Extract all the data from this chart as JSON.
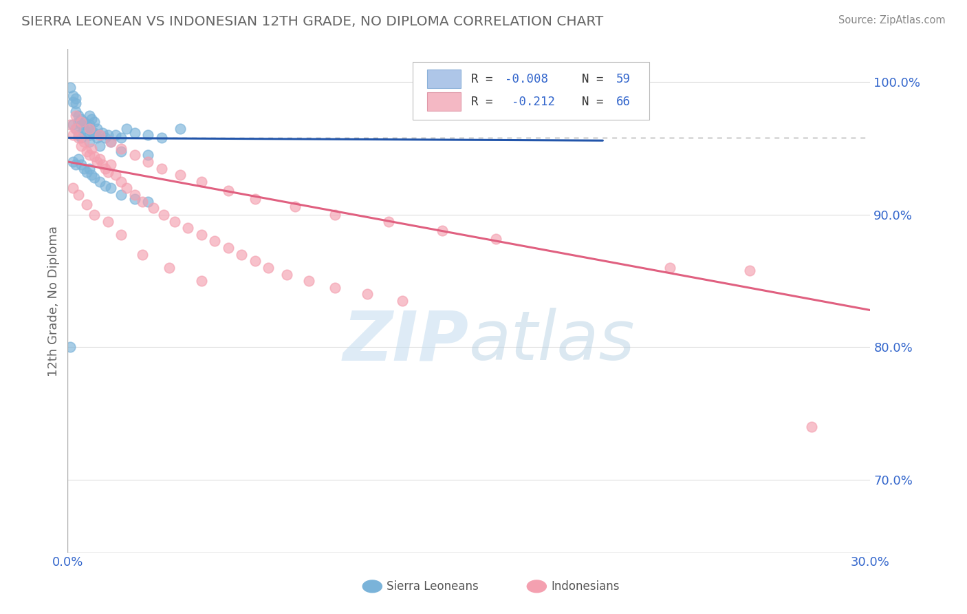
{
  "title": "SIERRA LEONEAN VS INDONESIAN 12TH GRADE, NO DIPLOMA CORRELATION CHART",
  "source": "Source: ZipAtlas.com",
  "ylabel": "12th Grade, No Diploma",
  "legend_text_color": "#3366cc",
  "blue_color": "#7ab3d9",
  "pink_color": "#f4a0b0",
  "blue_line_color": "#2255aa",
  "pink_line_color": "#e06080",
  "title_color": "#666666",
  "source_color": "#888888",
  "watermark_color": "#d0e4f0",
  "background_color": "#ffffff",
  "grid_color": "#dddddd",
  "axis_color": "#aaaaaa",
  "xlim": [
    0.0,
    0.3
  ],
  "ylim": [
    0.645,
    1.025
  ],
  "ytick_vals": [
    0.7,
    0.8,
    0.9,
    1.0
  ],
  "ytick_labels": [
    "70.0%",
    "80.0%",
    "90.0%",
    "100.0%"
  ],
  "dashed_line_y": 0.958,
  "blue_trend_x": [
    0.0,
    0.2
  ],
  "blue_trend_y": [
    0.958,
    0.956
  ],
  "pink_trend_x": [
    0.0,
    0.3
  ],
  "pink_trend_y": [
    0.94,
    0.828
  ],
  "blue_scatter_x": [
    0.001,
    0.002,
    0.002,
    0.003,
    0.003,
    0.003,
    0.004,
    0.004,
    0.005,
    0.005,
    0.006,
    0.006,
    0.007,
    0.007,
    0.008,
    0.008,
    0.008,
    0.009,
    0.009,
    0.01,
    0.01,
    0.011,
    0.011,
    0.012,
    0.013,
    0.014,
    0.015,
    0.016,
    0.018,
    0.02,
    0.022,
    0.025,
    0.03,
    0.035,
    0.042,
    0.002,
    0.003,
    0.004,
    0.005,
    0.006,
    0.007,
    0.008,
    0.009,
    0.01,
    0.012,
    0.014,
    0.016,
    0.02,
    0.025,
    0.03,
    0.001,
    0.002,
    0.003,
    0.004,
    0.005,
    0.008,
    0.012,
    0.02,
    0.03
  ],
  "blue_scatter_y": [
    0.996,
    0.99,
    0.985,
    0.988,
    0.984,
    0.978,
    0.975,
    0.97,
    0.972,
    0.968,
    0.97,
    0.965,
    0.968,
    0.962,
    0.975,
    0.968,
    0.96,
    0.972,
    0.963,
    0.97,
    0.962,
    0.965,
    0.958,
    0.96,
    0.962,
    0.958,
    0.96,
    0.955,
    0.96,
    0.958,
    0.965,
    0.962,
    0.96,
    0.958,
    0.965,
    0.94,
    0.938,
    0.942,
    0.938,
    0.935,
    0.932,
    0.935,
    0.93,
    0.928,
    0.925,
    0.922,
    0.92,
    0.915,
    0.912,
    0.91,
    0.8,
    0.968,
    0.965,
    0.96,
    0.958,
    0.955,
    0.952,
    0.948,
    0.945
  ],
  "pink_scatter_x": [
    0.001,
    0.002,
    0.003,
    0.004,
    0.005,
    0.006,
    0.007,
    0.008,
    0.009,
    0.01,
    0.011,
    0.012,
    0.013,
    0.014,
    0.015,
    0.016,
    0.018,
    0.02,
    0.022,
    0.025,
    0.028,
    0.032,
    0.036,
    0.04,
    0.045,
    0.05,
    0.055,
    0.06,
    0.065,
    0.07,
    0.075,
    0.082,
    0.09,
    0.1,
    0.112,
    0.125,
    0.003,
    0.005,
    0.008,
    0.012,
    0.016,
    0.02,
    0.025,
    0.03,
    0.035,
    0.042,
    0.05,
    0.06,
    0.07,
    0.085,
    0.1,
    0.12,
    0.14,
    0.16,
    0.002,
    0.004,
    0.007,
    0.01,
    0.015,
    0.02,
    0.028,
    0.038,
    0.05,
    0.225,
    0.255,
    0.278
  ],
  "pink_scatter_y": [
    0.968,
    0.96,
    0.965,
    0.958,
    0.952,
    0.955,
    0.948,
    0.945,
    0.95,
    0.944,
    0.94,
    0.942,
    0.938,
    0.935,
    0.932,
    0.938,
    0.93,
    0.925,
    0.92,
    0.915,
    0.91,
    0.905,
    0.9,
    0.895,
    0.89,
    0.885,
    0.88,
    0.875,
    0.87,
    0.865,
    0.86,
    0.855,
    0.85,
    0.845,
    0.84,
    0.835,
    0.975,
    0.97,
    0.965,
    0.96,
    0.955,
    0.95,
    0.945,
    0.94,
    0.935,
    0.93,
    0.925,
    0.918,
    0.912,
    0.906,
    0.9,
    0.895,
    0.888,
    0.882,
    0.92,
    0.915,
    0.908,
    0.9,
    0.895,
    0.885,
    0.87,
    0.86,
    0.85,
    0.86,
    0.858,
    0.74
  ]
}
